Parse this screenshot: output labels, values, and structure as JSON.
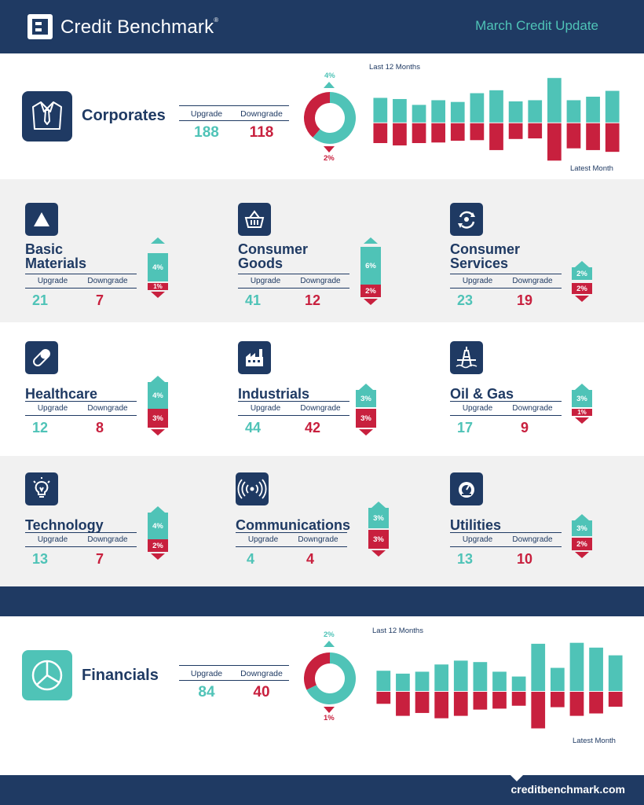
{
  "header": {
    "brand": "Credit Benchmark",
    "brand_mark": "®",
    "title": "March Credit Update"
  },
  "labels": {
    "upgrade": "Upgrade",
    "downgrade": "Downgrade",
    "last12": "Last 12 Months",
    "latest": "Latest Month"
  },
  "colors": {
    "navy": "#1f3a63",
    "teal": "#4fc3b7",
    "red": "#c8203e",
    "grey": "#f1f1f1"
  },
  "corporates": {
    "title": "Corporates",
    "icon": "shirt-tie-icon",
    "upgrade": "188",
    "downgrade": "118",
    "up_pct": "4%",
    "down_pct": "2%"
  },
  "financials": {
    "title": "Financials",
    "icon": "pie-icon",
    "upgrade": "84",
    "downgrade": "40",
    "up_pct": "2%",
    "down_pct": "1%"
  },
  "sectors": [
    {
      "title": "Basic\nMaterials",
      "icon": "triangle-icon",
      "upgrade": "21",
      "downgrade": "7",
      "up_pct": "4%",
      "down_pct": "1%"
    },
    {
      "title": "Consumer\nGoods",
      "icon": "basket-icon",
      "upgrade": "41",
      "downgrade": "12",
      "up_pct": "6%",
      "down_pct": "2%"
    },
    {
      "title": "Consumer\nServices",
      "icon": "cycle-icon",
      "upgrade": "23",
      "downgrade": "19",
      "up_pct": "2%",
      "down_pct": "2%"
    },
    {
      "title": "Healthcare",
      "icon": "pill-icon",
      "upgrade": "12",
      "downgrade": "8",
      "up_pct": "4%",
      "down_pct": "3%"
    },
    {
      "title": "Industrials",
      "icon": "factory-icon",
      "upgrade": "44",
      "downgrade": "42",
      "up_pct": "3%",
      "down_pct": "3%"
    },
    {
      "title": "Oil & Gas",
      "icon": "oil-rig-icon",
      "upgrade": "17",
      "downgrade": "9",
      "up_pct": "3%",
      "down_pct": "1%"
    },
    {
      "title": "Technology",
      "icon": "lightbulb-icon",
      "upgrade": "13",
      "downgrade": "7",
      "up_pct": "4%",
      "down_pct": "2%"
    },
    {
      "title": "Communications",
      "icon": "signal-icon",
      "upgrade": "4",
      "downgrade": "4",
      "up_pct": "3%",
      "down_pct": "3%"
    },
    {
      "title": "Utilities",
      "icon": "gauge-icon",
      "upgrade": "13",
      "downgrade": "10",
      "up_pct": "3%",
      "down_pct": "2%"
    }
  ],
  "chart_data": [
    {
      "type": "bar",
      "xlabel": "",
      "ylabel": "",
      "categories": [
        "1",
        "2",
        "3",
        "4",
        "5",
        "6",
        "7",
        "8",
        "9",
        "10",
        "11",
        "12",
        "13"
      ],
      "series": [
        {
          "values": [
            4.2,
            4.0,
            3.0,
            3.8,
            3.5,
            5.0,
            5.5,
            3.6,
            3.8,
            7.6,
            3.8,
            4.4,
            5.4
          ]
        },
        {
          "values": [
            -3.4,
            -3.8,
            -3.4,
            -3.3,
            -3.0,
            -2.9,
            -4.6,
            -2.7,
            -2.6,
            -6.4,
            -4.3,
            -4.6,
            -4.9
          ]
        }
      ]
    },
    {
      "type": "bar",
      "xlabel": "",
      "ylabel": "",
      "categories": [
        "1",
        "2",
        "3",
        "4",
        "5",
        "6",
        "7",
        "8",
        "9",
        "10",
        "11",
        "12",
        "13"
      ],
      "series": [
        {
          "values": [
            4.2,
            3.6,
            4.0,
            5.5,
            6.3,
            6.0,
            4.0,
            3.0,
            9.8,
            4.8,
            10.0,
            9.0,
            7.4
          ]
        },
        {
          "values": [
            -2.5,
            -5.0,
            -4.4,
            -5.5,
            -5.0,
            -3.7,
            -3.5,
            -2.9,
            -7.6,
            -3.2,
            -5.0,
            -4.5,
            -3.1
          ]
        }
      ]
    },
    {
      "type": "pie",
      "categories": [
        "Upgrade",
        "Downgrade"
      ],
      "values": [
        188,
        118
      ]
    },
    {
      "type": "pie",
      "categories": [
        "Upgrade",
        "Downgrade"
      ],
      "values": [
        84,
        40
      ]
    }
  ],
  "footer": {
    "url": "creditbenchmark.com"
  }
}
